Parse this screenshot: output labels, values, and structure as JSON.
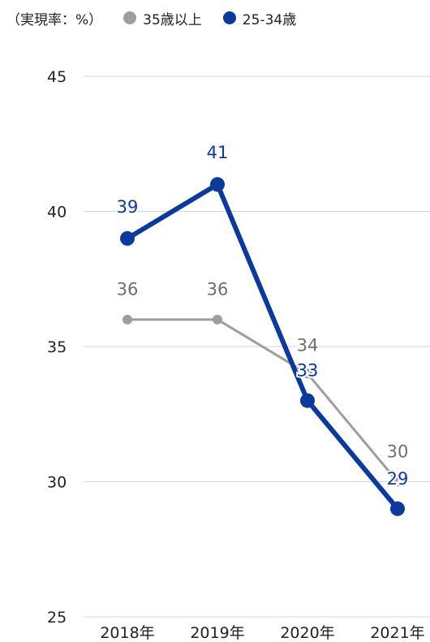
{
  "chart_data": {
    "type": "line",
    "unit_label": "（実現率：%）",
    "categories": [
      "2018年",
      "2019年",
      "2020年",
      "2021年"
    ],
    "ylim": [
      25,
      45
    ],
    "yticks": [
      25,
      30,
      35,
      40,
      45
    ],
    "grid": true,
    "legend_position": "top-left",
    "series": [
      {
        "name": "35歳以上",
        "values": [
          36,
          36,
          34,
          30
        ],
        "color": "#9e9e9e"
      },
      {
        "name": "25-34歳",
        "values": [
          39,
          41,
          33,
          29
        ],
        "color": "#0a3a9e"
      }
    ]
  }
}
